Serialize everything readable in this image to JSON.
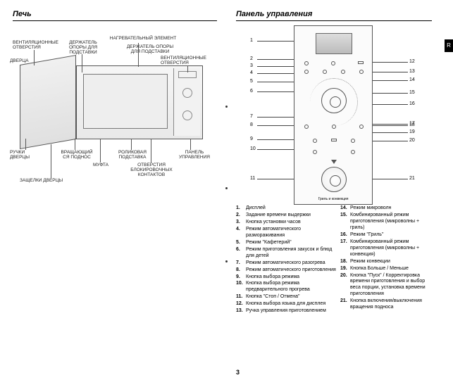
{
  "page_number": "3",
  "side_tab": "R",
  "left": {
    "heading": "Печь",
    "labels": {
      "vent_holes_l": "ВЕНТИЛЯЦИОННЫЕ\nОТВЕРСТИЯ",
      "door": "ДВЕРЦА",
      "stand_holder": "ДЕРЖАТЕЛЬ\nОПОРЫ ДЛЯ\nПОДСТАВКИ",
      "heating_element": "НАГРЕВАТЕЛЬНЫЙ ЭЛЕМЕНТ",
      "stand_support_holder": "ДЕРЖАТЕЛЬ ОПОРЫ\nДЛЯ ПОДСТАВКИ",
      "vent_holes_r": "ВЕНТИЛЯЦИОННЫЕ\nОТВЕРСТИЯ",
      "door_handles": "РУЧКИ\nДВЕРЦЫ",
      "turntable": "ВРАЩАЮЩИЙ\nСЯ ПОДНОС",
      "coupler": "МУФТА",
      "roller_stand": "РОЛИКОВАЯ\nПОДСТАВКА",
      "interlock_holes": "ОТВЕРСТИЯ\nБЛОКИРОВОЧНЫХ\nКОНТАКТОВ",
      "control_panel": "ПАНЕЛЬ\nУПРАВЛЕНИЯ",
      "door_latches": "ЗАЩЕЛКИ ДВЕРЦЫ"
    }
  },
  "right": {
    "heading": "Панель управления",
    "panel_bottom_label": "Гриль и конвекция",
    "legend": [
      {
        "n": "1.",
        "t": "Дисплей"
      },
      {
        "n": "2.",
        "t": "Задание времени выдержки"
      },
      {
        "n": "3.",
        "t": "Кнопка установки часов"
      },
      {
        "n": "4.",
        "t": "Режим автоматического размораживания"
      },
      {
        "n": "5.",
        "t": "Режим \"Кафетерий\""
      },
      {
        "n": "6.",
        "t": "Режим приготовления закусок и блюд для детей"
      },
      {
        "n": "7.",
        "t": "Режим автоматического разогрева"
      },
      {
        "n": "8.",
        "t": "Режим автоматического приготовления"
      },
      {
        "n": "9.",
        "t": "Кнопка выбора режима"
      },
      {
        "n": "10.",
        "t": "Кнопка выбора режима предварительного прогрева"
      },
      {
        "n": "11.",
        "t": "Кнопка \"Стоп / Отмена\""
      },
      {
        "n": "12.",
        "t": "Кнопка выбора языка для дисплея"
      },
      {
        "n": "13.",
        "t": "Ручка управления приготовлением"
      },
      {
        "n": "14.",
        "t": "Режим микроволн"
      },
      {
        "n": "15.",
        "t": "Комбинированный режим приготовления (микроволны + гриль)"
      },
      {
        "n": "16.",
        "t": "Режим \"Гриль\""
      },
      {
        "n": "17.",
        "t": "Комбинированный режим приготовления (микроволны + конвекция)"
      },
      {
        "n": "18.",
        "t": "Режим конвекции"
      },
      {
        "n": "19.",
        "t": "Кнопка Больше / Меньше"
      },
      {
        "n": "20.",
        "t": "Кнопка \"Пуск\" / Корректировка времени приготовления и выбор веса порции, установка времени приготовления"
      },
      {
        "n": "21.",
        "t": "Кнопка включения/выключения вращения подноса"
      }
    ],
    "callout_numbers_left": [
      "1",
      "2",
      "3",
      "4",
      "5",
      "6",
      "7",
      "8",
      "9",
      "10",
      "11"
    ],
    "callout_numbers_right": [
      "12",
      "13",
      "14",
      "15",
      "16",
      "17",
      "18",
      "19",
      "20",
      "21"
    ]
  },
  "style": {
    "text_color": "#000000",
    "rule_color": "#000000",
    "panel_border": "#555555",
    "leader_color": "#444444",
    "background": "#ffffff",
    "heading_fontsize": 11,
    "label_fontsize": 6.5,
    "legend_fontsize": 7
  }
}
